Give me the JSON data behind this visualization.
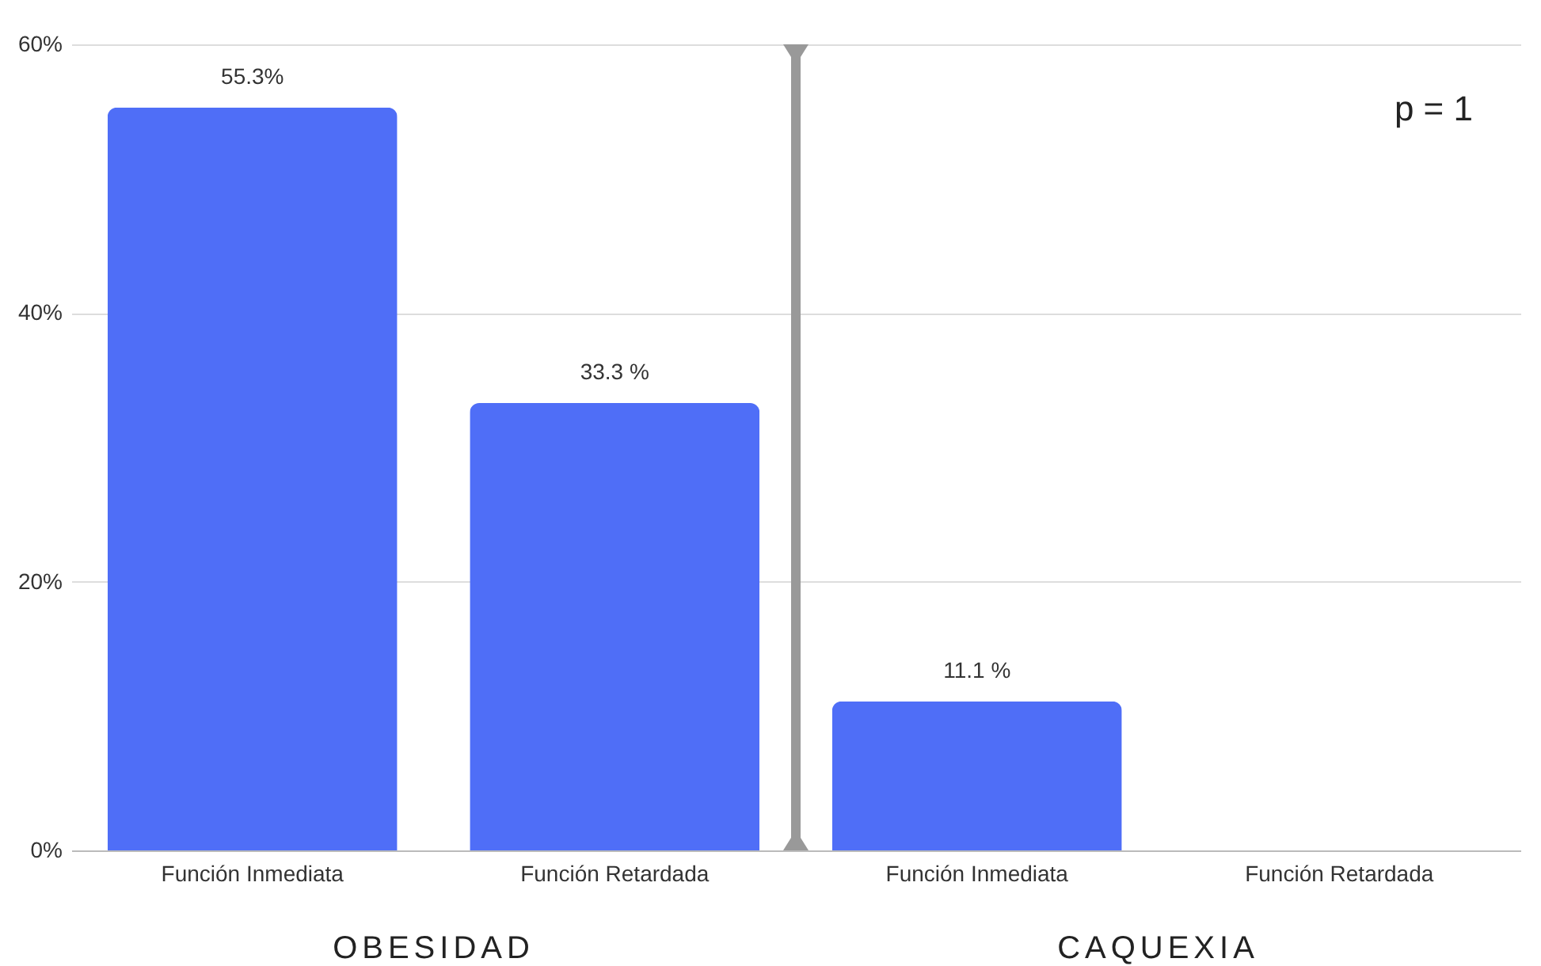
{
  "chart_data": {
    "type": "bar",
    "categories": [
      "Función Inmediata",
      "Función Retardada",
      "Función Inmediata",
      "Función Retardada"
    ],
    "values": [
      55.3,
      33.3,
      11.1,
      0
    ],
    "value_labels": [
      "55.3%",
      "33.3 %",
      "11.1 %",
      null
    ],
    "color": "#4f6ef7",
    "ylim": [
      0,
      60
    ],
    "yticks": [
      {
        "value": 0,
        "label": "0%"
      },
      {
        "value": 20,
        "label": "20%"
      },
      {
        "value": 40,
        "label": "40%"
      },
      {
        "value": 60,
        "label": "60%"
      }
    ],
    "grid": "y",
    "annotations": [
      "OBESIDAD",
      "CAQUEXIA",
      "p = 1"
    ]
  }
}
